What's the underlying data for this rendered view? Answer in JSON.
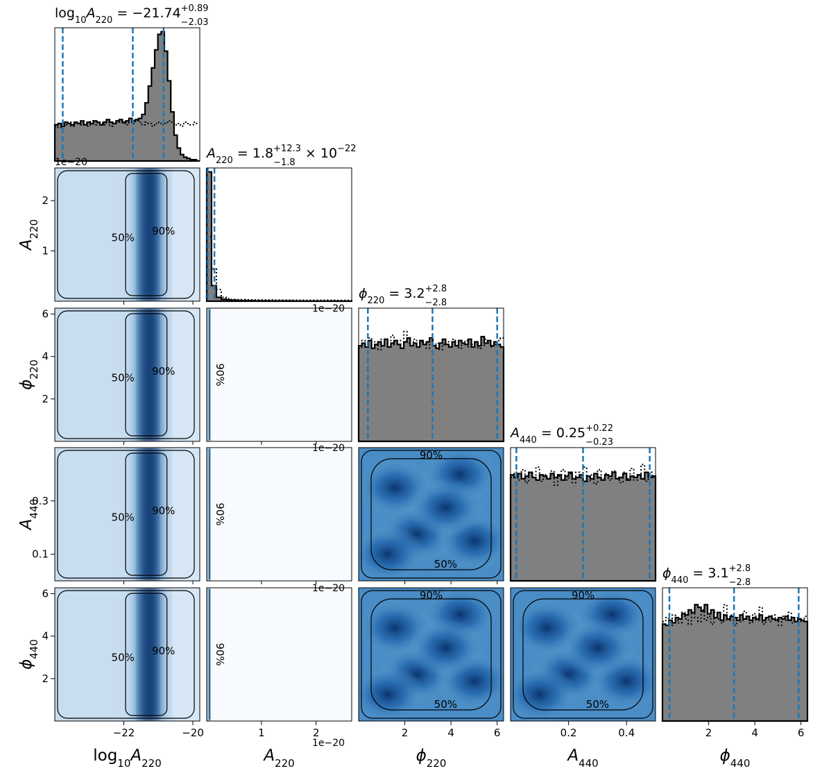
{
  "chart_data": {
    "type": "corner",
    "parameters": [
      {
        "name": "log10_A220",
        "label": {
          "main": "log",
          "sub1": "10",
          "sym": "A",
          "sub2": "220"
        }
      },
      {
        "name": "A220",
        "label": {
          "sym": "A",
          "sub2": "220"
        }
      },
      {
        "name": "phi220",
        "label": {
          "sym": "ϕ",
          "sub2": "220"
        }
      },
      {
        "name": "A440",
        "label": {
          "sym": "A",
          "sub2": "440"
        }
      },
      {
        "name": "phi440",
        "label": {
          "sym": "ϕ",
          "sub2": "440"
        }
      }
    ],
    "ranges": {
      "log10_A220": [
        -24.0,
        -19.8
      ],
      "A220": [
        0.0,
        2.65
      ],
      "phi220": [
        0.0,
        6.28
      ],
      "A440": [
        0.0,
        0.5
      ],
      "phi440": [
        0.0,
        6.28
      ]
    },
    "titles": [
      {
        "prefix": "log",
        "sub1": "10",
        "sym": "A",
        "sub2": "220",
        "value": " = −21.74",
        "upper": "+0.89",
        "lower": "−2.03",
        "suffix": ""
      },
      {
        "prefix": "",
        "sub1": "",
        "sym": "A",
        "sub2": "220",
        "value": " = 1.8",
        "upper": "+12.3",
        "lower": "−1.8",
        "suffix": " × 10",
        "suffix_exp": "−22"
      },
      {
        "prefix": "",
        "sub1": "",
        "sym": "ϕ",
        "sub2": "220",
        "value": " = 3.2",
        "upper": "+2.8",
        "lower": "−2.8",
        "suffix": ""
      },
      {
        "prefix": "",
        "sub1": "",
        "sym": "A",
        "sub2": "440",
        "value": " = 0.25",
        "upper": "+0.22",
        "lower": "−0.23",
        "suffix": ""
      },
      {
        "prefix": "",
        "sub1": "",
        "sym": "ϕ",
        "sub2": "440",
        "value": " = 3.1",
        "upper": "+2.8",
        "lower": "−2.8",
        "suffix": ""
      }
    ],
    "quantiles": {
      "log10_A220": [
        -23.77,
        -21.74,
        -20.85
      ],
      "A220": [
        0.0,
        0.018,
        0.141
      ],
      "phi220": [
        0.4,
        3.2,
        6.0
      ],
      "A440": [
        0.02,
        0.25,
        0.48
      ],
      "phi440": [
        0.3,
        3.1,
        5.9
      ]
    },
    "x_ticks": {
      "log10_A220": [
        -22,
        -20
      ],
      "A220": [
        1,
        2
      ],
      "phi220": [
        2,
        4,
        6
      ],
      "A440": [
        0.2,
        0.4
      ],
      "phi440": [
        2,
        4,
        6
      ]
    },
    "y_ticks": {
      "A220": [
        1,
        2
      ],
      "phi220": [
        2,
        4,
        6
      ],
      "A440": [
        0.1,
        0.3
      ],
      "phi440": [
        2,
        4,
        6
      ]
    },
    "tick_labels": {
      "log10_A220": [
        "−22",
        "−20"
      ],
      "A220": [
        "1",
        "2"
      ],
      "phi220": [
        "2",
        "4",
        "6"
      ],
      "A440": [
        "0.2",
        "0.4"
      ],
      "A440_y": [
        "0.1",
        "0.3"
      ],
      "phi440": [
        "2",
        "4",
        "6"
      ]
    },
    "offset_text": "1e−20",
    "contour_levels": [
      "50%",
      "90%"
    ],
    "hist_log10_A220": [
      0.28,
      0.29,
      0.27,
      0.3,
      0.29,
      0.28,
      0.3,
      0.29,
      0.31,
      0.28,
      0.3,
      0.29,
      0.31,
      0.3,
      0.28,
      0.3,
      0.32,
      0.3,
      0.29,
      0.31,
      0.32,
      0.3,
      0.31,
      0.33,
      0.31,
      0.32,
      0.33,
      0.36,
      0.45,
      0.58,
      0.72,
      0.86,
      0.98,
      1.0,
      0.85,
      0.62,
      0.38,
      0.2,
      0.1,
      0.05,
      0.03,
      0.02,
      0.01,
      0.01,
      0.0
    ],
    "hist_log10_A220_prior": [
      0.27,
      0.26,
      0.29,
      0.28,
      0.3,
      0.27,
      0.29,
      0.3,
      0.28,
      0.29,
      0.27,
      0.31,
      0.28,
      0.3,
      0.29,
      0.28,
      0.3,
      0.27,
      0.29,
      0.31,
      0.3,
      0.29,
      0.28,
      0.3,
      0.29,
      0.31,
      0.3,
      0.28,
      0.3,
      0.29,
      0.27,
      0.29,
      0.3,
      0.28,
      0.29,
      0.31,
      0.3,
      0.28,
      0.29,
      0.27,
      0.3,
      0.29,
      0.28,
      0.3,
      0.29
    ],
    "hist_A220": [
      1.0,
      0.12,
      0.03,
      0.015,
      0.01,
      0.008,
      0.006,
      0.005,
      0.004,
      0.004,
      0.003,
      0.003,
      0.003,
      0.002,
      0.002,
      0.002,
      0.002,
      0.002,
      0.001,
      0.001,
      0.001,
      0.001,
      0.001,
      0.001,
      0.001,
      0.001,
      0.001,
      0.001,
      0.001,
      0.001
    ],
    "hist_A220_prior": [
      0.5,
      0.25,
      0.09,
      0.03,
      0.02,
      0.014,
      0.012,
      0.012,
      0.011,
      0.011,
      0.01,
      0.01,
      0.01,
      0.01,
      0.009,
      0.009,
      0.009,
      0.009,
      0.009,
      0.008,
      0.008,
      0.008,
      0.008,
      0.008,
      0.008,
      0.008,
      0.008,
      0.007,
      0.007,
      0.007
    ],
    "hist_phi220": [
      0.74,
      0.76,
      0.73,
      0.78,
      0.72,
      0.75,
      0.77,
      0.74,
      0.79,
      0.73,
      0.76,
      0.78,
      0.75,
      0.72,
      0.77,
      0.8,
      0.74,
      0.76,
      0.73,
      0.78,
      0.75,
      0.77,
      0.8,
      0.74,
      0.72,
      0.76,
      0.79,
      0.75,
      0.73,
      0.77,
      0.74,
      0.78,
      0.76,
      0.75,
      0.79,
      0.73,
      0.77,
      0.74,
      0.81,
      0.76,
      0.78,
      0.74,
      0.77,
      0.75,
      0.73
    ],
    "hist_phi220_prior": [
      0.72,
      0.78,
      0.75,
      0.8,
      0.74,
      0.77,
      0.71,
      0.79,
      0.76,
      0.73,
      0.82,
      0.75,
      0.78,
      0.72,
      0.85,
      0.76,
      0.74,
      0.79,
      0.73,
      0.77,
      0.75,
      0.72,
      0.78,
      0.74,
      0.76,
      0.71,
      0.75,
      0.77,
      0.73,
      0.79,
      0.74,
      0.72,
      0.76,
      0.78,
      0.73,
      0.75,
      0.77,
      0.72,
      0.74,
      0.79,
      0.76,
      0.73,
      0.75,
      0.78,
      0.8
    ],
    "hist_A440": [
      0.82,
      0.8,
      0.83,
      0.79,
      0.81,
      0.84,
      0.8,
      0.78,
      0.82,
      0.81,
      0.79,
      0.83,
      0.8,
      0.82,
      0.78,
      0.81,
      0.84,
      0.79,
      0.8,
      0.82,
      0.77,
      0.81,
      0.79,
      0.83,
      0.8,
      0.78,
      0.82,
      0.81,
      0.84,
      0.79,
      0.8,
      0.83,
      0.78,
      0.81,
      0.8,
      0.82,
      0.79,
      0.84,
      0.8,
      0.81
    ],
    "hist_A440_prior": [
      0.8,
      0.84,
      0.78,
      0.86,
      0.76,
      0.83,
      0.8,
      0.88,
      0.77,
      0.82,
      0.79,
      0.85,
      0.74,
      0.81,
      0.86,
      0.78,
      0.83,
      0.76,
      0.84,
      0.8,
      0.88,
      0.77,
      0.82,
      0.75,
      0.86,
      0.79,
      0.83,
      0.78,
      0.85,
      0.8,
      0.76,
      0.84,
      0.79,
      0.87,
      0.78,
      0.82,
      0.9,
      0.77,
      0.84,
      0.8
    ],
    "hist_phi440": [
      0.75,
      0.74,
      0.78,
      0.76,
      0.8,
      0.79,
      0.83,
      0.82,
      0.86,
      0.84,
      0.9,
      0.88,
      0.85,
      0.9,
      0.83,
      0.86,
      0.8,
      0.84,
      0.78,
      0.82,
      0.79,
      0.81,
      0.8,
      0.78,
      0.82,
      0.79,
      0.81,
      0.78,
      0.8,
      0.79,
      0.82,
      0.78,
      0.8,
      0.81,
      0.79,
      0.78,
      0.8,
      0.79,
      0.81,
      0.78,
      0.8,
      0.77,
      0.79,
      0.78,
      0.77
    ],
    "hist_phi440_prior": [
      0.77,
      0.8,
      0.74,
      0.82,
      0.78,
      0.76,
      0.84,
      0.79,
      0.75,
      0.83,
      0.8,
      0.77,
      0.86,
      0.78,
      0.81,
      0.75,
      0.84,
      0.79,
      0.76,
      0.9,
      0.78,
      0.82,
      0.74,
      0.8,
      0.77,
      0.85,
      0.79,
      0.76,
      0.83,
      0.78,
      0.88,
      0.75,
      0.8,
      0.77,
      0.82,
      0.79,
      0.74,
      0.81,
      0.78,
      0.84,
      0.76,
      0.8,
      0.79,
      0.77,
      0.81
    ]
  }
}
